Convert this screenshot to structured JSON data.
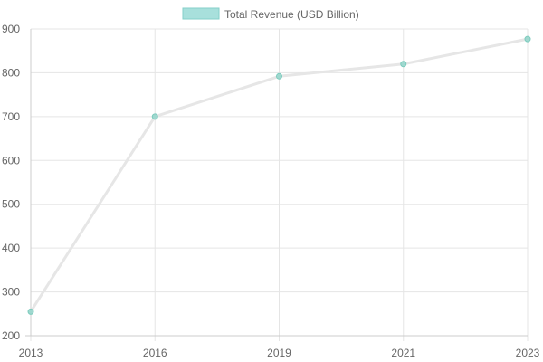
{
  "chart_data": {
    "type": "line",
    "categories": [
      "2013",
      "2016",
      "2019",
      "2021",
      "2023"
    ],
    "series": [
      {
        "name": "Total Revenue (USD Billion)",
        "values": [
          255,
          700,
          792,
          820,
          877
        ]
      }
    ],
    "ylim": [
      200,
      900
    ],
    "yticks": [
      200,
      300,
      400,
      500,
      600,
      700,
      800,
      900
    ],
    "grid": true,
    "legend": "top-center",
    "colors": {
      "line": "#e6e6e6",
      "point_fill": "#9fd8cf",
      "point_stroke": "#7ccbbd",
      "legend_fill": "#a8e0dc",
      "legend_stroke": "#85cfca",
      "grid": "#e5e5e5",
      "axis": "#cccccc",
      "text": "#666666"
    }
  }
}
